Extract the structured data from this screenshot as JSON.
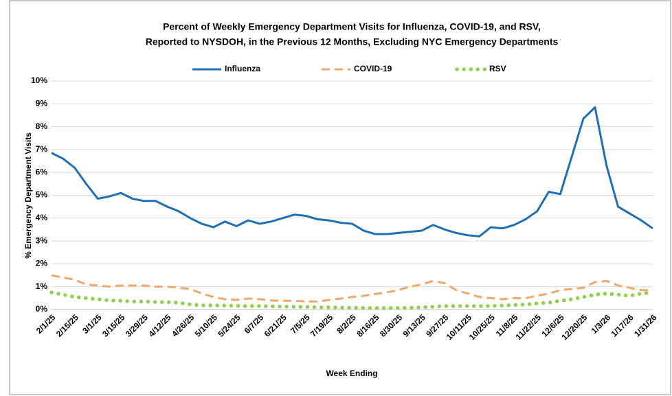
{
  "chart_data": {
    "type": "line",
    "title": [
      "Percent of Weekly Emergency Department Visits for Influenza, COVID-19, and RSV,",
      "Reported to NYSDOH, in the Previous 12 Months, Excluding NYC Emergency Departments"
    ],
    "x_label": "Week Ending",
    "y_label": "% Emergency Department Visits",
    "categories": [
      "2/1/25",
      null,
      "2/15/25",
      null,
      "3/1/25",
      null,
      "3/15/25",
      null,
      "3/29/25",
      null,
      "4/12/25",
      null,
      "4/26/25",
      null,
      "5/10/25",
      null,
      "5/24/25",
      null,
      "6/7/25",
      null,
      "6/21/25",
      null,
      "7/5/25",
      null,
      "7/19/25",
      null,
      "8/2/25",
      null,
      "8/16/25",
      null,
      "8/30/25",
      null,
      "9/13/25",
      null,
      "9/27/25",
      null,
      "10/11/25",
      null,
      "10/25/25",
      null,
      "11/8/25",
      null,
      "11/22/25",
      null,
      "12/6/25",
      null,
      "12/20/25",
      null,
      "1/3/26",
      null,
      "1/17/26",
      null,
      "1/31/26"
    ],
    "series": [
      {
        "name": "Influenza",
        "color": "#1f6fb4",
        "style": "solid",
        "values": [
          6.85,
          6.6,
          6.2,
          5.5,
          4.85,
          4.95,
          5.1,
          4.85,
          4.75,
          4.75,
          4.5,
          4.3,
          4.0,
          3.75,
          3.6,
          3.85,
          3.65,
          3.9,
          3.75,
          3.85,
          4.0,
          4.15,
          4.1,
          3.95,
          3.9,
          3.8,
          3.75,
          3.45,
          3.3,
          3.3,
          3.35,
          3.4,
          3.45,
          3.7,
          3.5,
          3.35,
          3.25,
          3.2,
          3.6,
          3.55,
          3.7,
          3.95,
          4.3,
          5.15,
          5.05,
          6.7,
          8.35,
          8.85,
          6.3,
          4.5,
          4.2,
          3.9,
          3.55
        ]
      },
      {
        "name": "COVID-19",
        "color": "#f0a868",
        "style": "dashed",
        "values": [
          1.5,
          1.4,
          1.3,
          1.1,
          1.05,
          1.0,
          1.05,
          1.05,
          1.05,
          1.0,
          1.0,
          0.95,
          0.9,
          0.7,
          0.55,
          0.45,
          0.42,
          0.48,
          0.45,
          0.4,
          0.38,
          0.38,
          0.35,
          0.35,
          0.42,
          0.48,
          0.55,
          0.6,
          0.68,
          0.75,
          0.85,
          1.0,
          1.1,
          1.25,
          1.15,
          0.85,
          0.7,
          0.55,
          0.5,
          0.45,
          0.5,
          0.5,
          0.6,
          0.7,
          0.85,
          0.9,
          0.95,
          1.2,
          1.25,
          1.05,
          0.95,
          0.85,
          0.85
        ]
      },
      {
        "name": "RSV",
        "color": "#92d050",
        "style": "dotted",
        "values": [
          0.75,
          0.65,
          0.55,
          0.5,
          0.45,
          0.4,
          0.38,
          0.35,
          0.35,
          0.33,
          0.32,
          0.3,
          0.22,
          0.18,
          0.18,
          0.17,
          0.16,
          0.15,
          0.15,
          0.14,
          0.13,
          0.12,
          0.12,
          0.1,
          0.1,
          0.08,
          0.08,
          0.07,
          0.07,
          0.07,
          0.07,
          0.08,
          0.1,
          0.12,
          0.15,
          0.15,
          0.15,
          0.15,
          0.15,
          0.17,
          0.2,
          0.22,
          0.27,
          0.3,
          0.38,
          0.45,
          0.55,
          0.65,
          0.7,
          0.65,
          0.6,
          0.7,
          0.75
        ]
      }
    ],
    "ylim": [
      0,
      10
    ],
    "yticks": [
      {
        "value": 0,
        "label": "0%"
      },
      {
        "value": 1,
        "label": "1%"
      },
      {
        "value": 2,
        "label": "2%"
      },
      {
        "value": 3,
        "label": "3%"
      },
      {
        "value": 4,
        "label": "4%"
      },
      {
        "value": 5,
        "label": "5%"
      },
      {
        "value": 6,
        "label": "6%"
      },
      {
        "value": 7,
        "label": "7%"
      },
      {
        "value": 8,
        "label": "8%"
      },
      {
        "value": 9,
        "label": "9%"
      },
      {
        "value": 10,
        "label": "10%"
      }
    ],
    "grid": true,
    "legend": "top"
  }
}
